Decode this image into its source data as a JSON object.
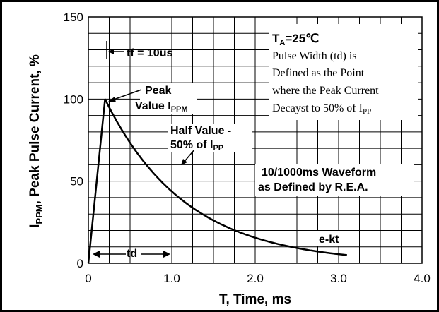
{
  "chart_data": {
    "type": "line",
    "xlabel": "T, Time, ms",
    "ylabel": {
      "main": "I",
      "sub": "PPM",
      "rest": ", Peak Pulse Current,  %"
    },
    "xlim": [
      0,
      4.0
    ],
    "ylim": [
      0,
      150
    ],
    "x_ticks": [
      "0",
      "1.0",
      "2.0",
      "3.0",
      "4.0"
    ],
    "y_ticks": [
      "0",
      "50",
      "100",
      "150"
    ],
    "grid": true,
    "series": [
      {
        "x": [
          0.0,
          0.2,
          0.4,
          0.6,
          0.8,
          1.0,
          1.2,
          1.4,
          1.6,
          1.8,
          2.0,
          2.2,
          2.4,
          2.6,
          2.8,
          3.0,
          3.1
        ],
        "y": [
          0,
          100,
          85,
          72,
          62,
          53,
          45,
          38,
          32,
          27,
          22,
          18,
          14,
          11,
          8,
          6,
          5
        ]
      }
    ],
    "annotations": {
      "tf": "tf = 10us",
      "peak_1": "Peak",
      "peak_2": "Value I",
      "peak_2_sub": "PPM",
      "half_1": "Half Value -",
      "half_2": "50% of I",
      "half_2_sub": "PP",
      "waveform_1": "10/1000ms Waveform",
      "waveform_2": "as Defined by R.E.A.",
      "ekt": "e-kt",
      "td": "td"
    },
    "note": {
      "ta": "T",
      "ta_sub": "A",
      "ta_rest": "=25℃",
      "line1": "Pulse Width (td) is",
      "line2": "Defined as the Point",
      "line3": "where the Peak Current",
      "line4": "Decayst to 50% of I",
      "line4_sub": "PP"
    }
  }
}
